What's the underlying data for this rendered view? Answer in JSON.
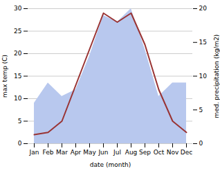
{
  "chart_data": {
    "type": "line",
    "xlabel": "date (month)",
    "ylabel": "max temp (C)",
    "y2label": "med. precipitation (kg/m2)",
    "categories": [
      "Jan",
      "Feb",
      "Mar",
      "Apr",
      "May",
      "Jun",
      "Jul",
      "Aug",
      "Sep",
      "Oct",
      "Nov",
      "Dec"
    ],
    "series": [
      {
        "type": "area",
        "axis": "y2",
        "color": "#b8c8ee",
        "values": [
          6.0,
          9.0,
          7.0,
          8.0,
          13.0,
          19.0,
          18.0,
          20.0,
          14.0,
          7.0,
          9.0,
          9.0
        ]
      },
      {
        "type": "line",
        "color": "#993333",
        "values": [
          2.0,
          2.5,
          5.0,
          13.0,
          21.0,
          29.0,
          27.0,
          29.0,
          22.0,
          12.0,
          5.0,
          2.5
        ]
      }
    ],
    "ylim": [
      0,
      30
    ],
    "yticks": [
      0,
      5,
      10,
      15,
      20,
      25,
      30
    ],
    "y2lim": [
      0,
      20
    ],
    "y2ticks": [
      0,
      5,
      10,
      15,
      20
    ],
    "grid": true
  }
}
